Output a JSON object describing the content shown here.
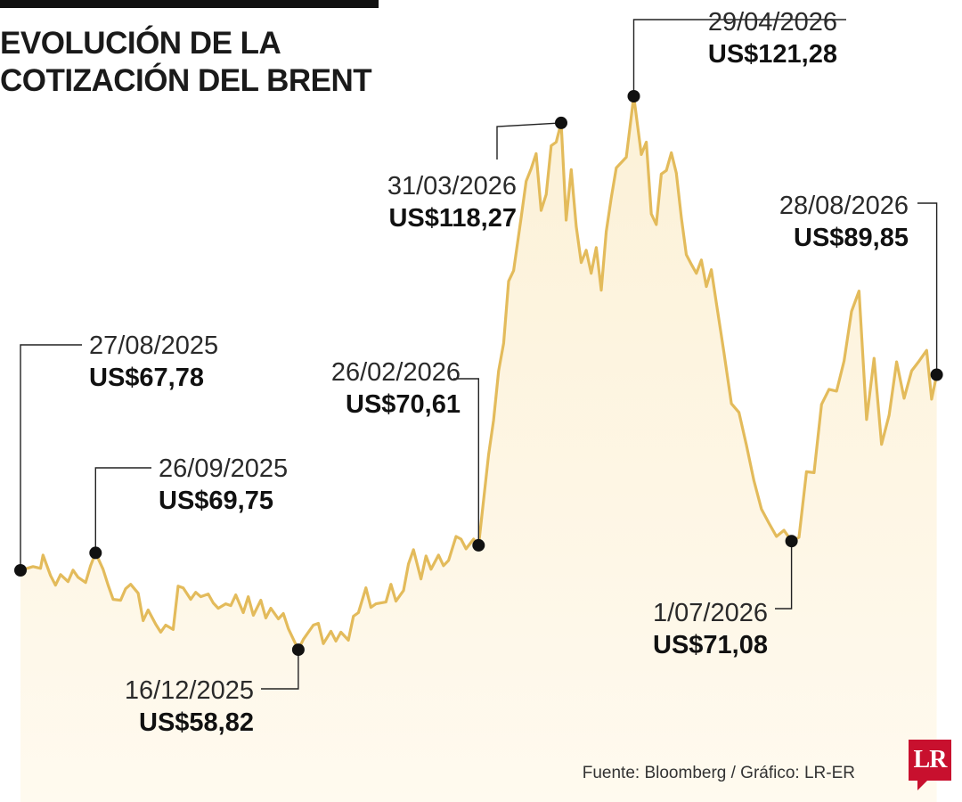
{
  "header": {
    "title_line1": "EVOLUCIÓN DE LA",
    "title_line2": "COTIZACIÓN DEL BRENT"
  },
  "footer": {
    "source": "Fuente: Bloomberg / Gráfico: LR-ER",
    "logo_text": "LR"
  },
  "colors": {
    "line": "#e3bb5b",
    "area_top": "#fcf1d7",
    "area_bottom": "#fffaef",
    "marker": "#111111",
    "logo": "#c8102e"
  },
  "chart_data": {
    "type": "area",
    "title": "EVOLUCIÓN DE LA COTIZACIÓN DEL BRENT",
    "xlabel": "",
    "ylabel": "",
    "x_range": [
      "27/08/2025",
      "31/08/2026"
    ],
    "ylim": [
      40,
      125
    ],
    "grid": false,
    "legend": "none",
    "series": [
      {
        "points": [
          [
            "27/08/2025",
            67.78
          ],
          [
            "01/09/2025",
            68.2
          ],
          [
            "04/09/2025",
            68.0
          ],
          [
            "05/09/2025",
            69.5
          ],
          [
            "08/09/2025",
            67.2
          ],
          [
            "10/09/2025",
            66.1
          ],
          [
            "12/09/2025",
            67.3
          ],
          [
            "15/09/2025",
            66.5
          ],
          [
            "17/09/2025",
            67.8
          ],
          [
            "19/09/2025",
            67.0
          ],
          [
            "22/09/2025",
            66.4
          ],
          [
            "24/09/2025",
            68.3
          ],
          [
            "26/09/2025",
            69.75
          ],
          [
            "29/09/2025",
            67.9
          ],
          [
            "01/10/2025",
            66.1
          ],
          [
            "03/10/2025",
            64.5
          ],
          [
            "06/10/2025",
            64.4
          ],
          [
            "08/10/2025",
            65.7
          ],
          [
            "10/10/2025",
            66.2
          ],
          [
            "13/10/2025",
            65.2
          ],
          [
            "15/10/2025",
            62.1
          ],
          [
            "17/10/2025",
            63.3
          ],
          [
            "20/10/2025",
            61.7
          ],
          [
            "22/10/2025",
            60.8
          ],
          [
            "24/10/2025",
            61.6
          ],
          [
            "27/10/2025",
            61.1
          ],
          [
            "29/10/2025",
            66.0
          ],
          [
            "31/10/2025",
            65.8
          ],
          [
            "03/11/2025",
            64.5
          ],
          [
            "05/11/2025",
            65.3
          ],
          [
            "07/11/2025",
            64.8
          ],
          [
            "10/11/2025",
            65.1
          ],
          [
            "12/11/2025",
            64.1
          ],
          [
            "14/11/2025",
            63.5
          ],
          [
            "17/11/2025",
            64.0
          ],
          [
            "19/11/2025",
            63.8
          ],
          [
            "21/11/2025",
            65.0
          ],
          [
            "24/11/2025",
            63.0
          ],
          [
            "26/11/2025",
            64.8
          ],
          [
            "28/11/2025",
            62.7
          ],
          [
            "01/12/2025",
            64.4
          ],
          [
            "03/12/2025",
            62.4
          ],
          [
            "05/12/2025",
            63.5
          ],
          [
            "08/12/2025",
            62.3
          ],
          [
            "10/12/2025",
            62.9
          ],
          [
            "12/12/2025",
            61.2
          ],
          [
            "16/12/2025",
            58.82
          ],
          [
            "18/12/2025",
            60.0
          ],
          [
            "22/12/2025",
            61.6
          ],
          [
            "24/12/2025",
            61.8
          ],
          [
            "26/12/2025",
            59.5
          ],
          [
            "29/12/2025",
            60.9
          ],
          [
            "31/12/2025",
            59.8
          ],
          [
            "02/01/2026",
            60.8
          ],
          [
            "05/01/2026",
            59.9
          ],
          [
            "07/01/2026",
            62.6
          ],
          [
            "09/01/2026",
            63.0
          ],
          [
            "12/01/2026",
            65.8
          ],
          [
            "14/01/2026",
            63.6
          ],
          [
            "16/01/2026",
            64.0
          ],
          [
            "20/01/2026",
            64.2
          ],
          [
            "22/01/2026",
            66.2
          ],
          [
            "24/01/2026",
            64.3
          ],
          [
            "27/01/2026",
            65.5
          ],
          [
            "29/01/2026",
            68.5
          ],
          [
            "31/01/2026",
            70.1
          ],
          [
            "03/02/2026",
            66.8
          ],
          [
            "05/02/2026",
            69.4
          ],
          [
            "07/02/2026",
            67.9
          ],
          [
            "10/02/2026",
            69.5
          ],
          [
            "12/02/2026",
            68.3
          ],
          [
            "14/02/2026",
            68.9
          ],
          [
            "17/02/2026",
            71.6
          ],
          [
            "19/02/2026",
            71.3
          ],
          [
            "21/02/2026",
            70.2
          ],
          [
            "24/02/2026",
            71.3
          ],
          [
            "26/02/2026",
            70.61
          ],
          [
            "02/03/2026",
            80.8
          ],
          [
            "04/03/2026",
            84.7
          ],
          [
            "06/03/2026",
            90.3
          ],
          [
            "08/03/2026",
            93.4
          ],
          [
            "10/03/2026",
            100.4
          ],
          [
            "12/03/2026",
            101.6
          ],
          [
            "15/03/2026",
            107.6
          ],
          [
            "17/03/2026",
            111.7
          ],
          [
            "19/03/2026",
            113.1
          ],
          [
            "21/03/2026",
            114.8
          ],
          [
            "23/03/2026",
            108.4
          ],
          [
            "25/03/2026",
            110.2
          ],
          [
            "27/03/2026",
            115.7
          ],
          [
            "29/03/2026",
            116.1
          ],
          [
            "31/03/2026",
            118.27
          ],
          [
            "02/04/2026",
            107.3
          ],
          [
            "04/04/2026",
            113.0
          ],
          [
            "06/04/2026",
            106.6
          ],
          [
            "08/04/2026",
            102.5
          ],
          [
            "10/04/2026",
            103.9
          ],
          [
            "12/04/2026",
            101.3
          ],
          [
            "14/04/2026",
            104.2
          ],
          [
            "16/04/2026",
            99.4
          ],
          [
            "18/04/2026",
            106.0
          ],
          [
            "20/04/2026",
            109.8
          ],
          [
            "22/04/2026",
            113.2
          ],
          [
            "24/04/2026",
            113.8
          ],
          [
            "26/04/2026",
            114.4
          ],
          [
            "29/04/2026",
            121.28
          ],
          [
            "02/05/2026",
            114.7
          ],
          [
            "04/05/2026",
            116.1
          ],
          [
            "06/05/2026",
            108.0
          ],
          [
            "08/05/2026",
            106.8
          ],
          [
            "10/05/2026",
            112.5
          ],
          [
            "12/05/2026",
            112.9
          ],
          [
            "14/05/2026",
            114.9
          ],
          [
            "16/05/2026",
            112.6
          ],
          [
            "18/05/2026",
            107.6
          ],
          [
            "20/05/2026",
            103.4
          ],
          [
            "22/05/2026",
            102.3
          ],
          [
            "24/05/2026",
            101.3
          ],
          [
            "26/05/2026",
            102.8
          ],
          [
            "28/05/2026",
            99.8
          ],
          [
            "30/05/2026",
            101.7
          ],
          [
            "01/06/2026",
            97.9
          ],
          [
            "04/06/2026",
            92.4
          ],
          [
            "07/06/2026",
            86.6
          ],
          [
            "10/06/2026",
            85.6
          ],
          [
            "13/06/2026",
            81.9
          ],
          [
            "16/06/2026",
            77.9
          ],
          [
            "19/06/2026",
            74.7
          ],
          [
            "22/06/2026",
            73.1
          ],
          [
            "25/06/2026",
            71.6
          ],
          [
            "28/06/2026",
            72.3
          ],
          [
            "01/07/2026",
            71.08
          ],
          [
            "04/07/2026",
            71.5
          ],
          [
            "07/07/2026",
            78.9
          ],
          [
            "10/07/2026",
            78.8
          ],
          [
            "13/07/2026",
            86.5
          ],
          [
            "16/07/2026",
            88.2
          ],
          [
            "19/07/2026",
            88.0
          ],
          [
            "22/07/2026",
            91.4
          ],
          [
            "25/07/2026",
            97.0
          ],
          [
            "28/07/2026",
            99.3
          ],
          [
            "31/07/2026",
            84.8
          ],
          [
            "03/08/2026",
            91.7
          ],
          [
            "06/08/2026",
            82.0
          ],
          [
            "09/08/2026",
            85.3
          ],
          [
            "12/08/2026",
            91.3
          ],
          [
            "15/08/2026",
            87.2
          ],
          [
            "18/08/2026",
            90.3
          ],
          [
            "21/08/2026",
            91.4
          ],
          [
            "24/08/2026",
            92.6
          ],
          [
            "26/08/2026",
            87.1
          ],
          [
            "28/08/2026",
            89.85
          ]
        ]
      }
    ],
    "annotations": [
      {
        "date": "27/08/2025",
        "value_label": "US$67,78",
        "value": 67.78
      },
      {
        "date": "26/09/2025",
        "value_label": "US$69,75",
        "value": 69.75
      },
      {
        "date": "16/12/2025",
        "value_label": "US$58,82",
        "value": 58.82
      },
      {
        "date": "26/02/2026",
        "value_label": "US$70,61",
        "value": 70.61
      },
      {
        "date": "31/03/2026",
        "value_label": "US$118,27",
        "value": 118.27
      },
      {
        "date": "29/04/2026",
        "value_label": "US$121,28",
        "value": 121.28
      },
      {
        "date": "1/07/2026",
        "value_label": "US$71,08",
        "value": 71.08
      },
      {
        "date": "28/08/2026",
        "value_label": "US$89,85",
        "value": 89.85
      }
    ]
  }
}
